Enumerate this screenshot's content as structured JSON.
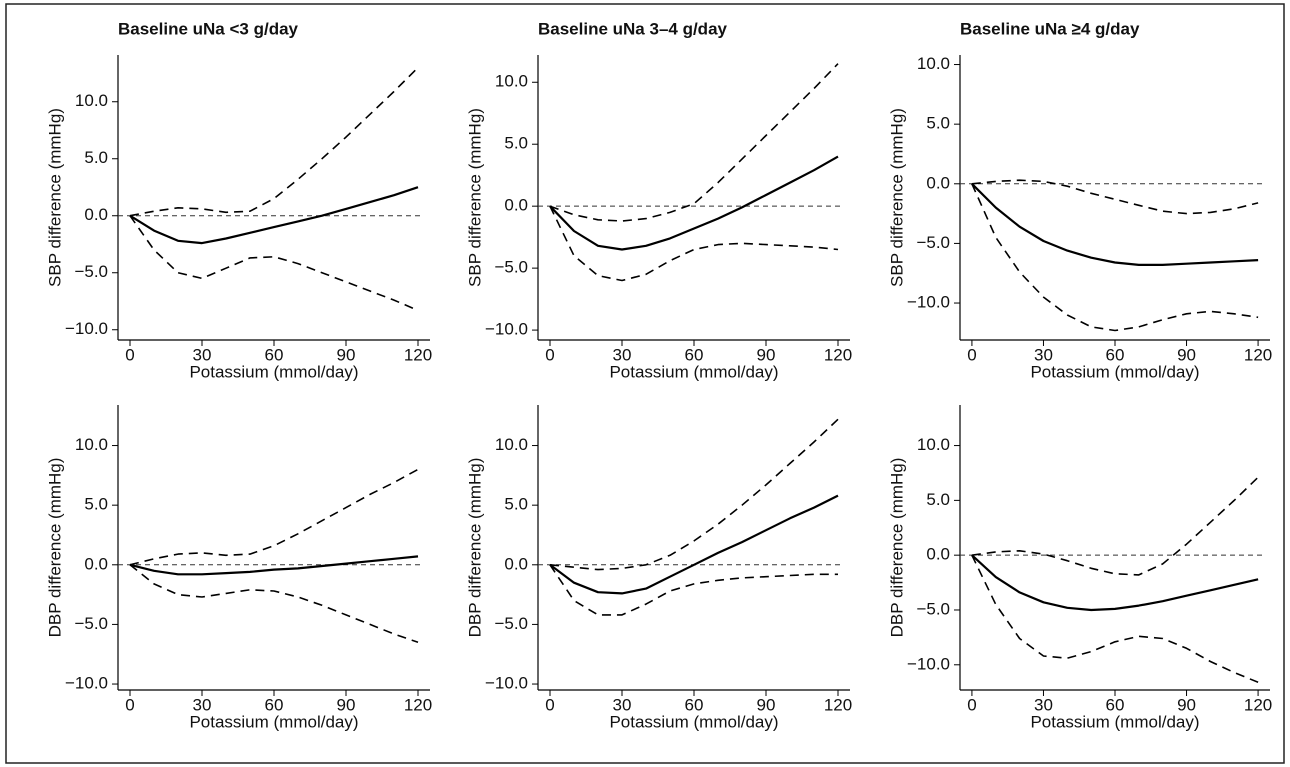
{
  "chart_data": [
    {
      "type": "line",
      "title": "Baseline uNa <3 g/day",
      "ylabel": "SBP difference (mmHg)",
      "xlabel": "Potassium (mmol/day)",
      "x": [
        0,
        10,
        20,
        30,
        40,
        50,
        60,
        70,
        80,
        90,
        100,
        110,
        120
      ],
      "series": [
        {
          "color": "#000000",
          "style": "solid",
          "values": [
            0,
            -1.3,
            -2.2,
            -2.4,
            -2.0,
            -1.5,
            -1.0,
            -0.5,
            0.0,
            0.6,
            1.2,
            1.8,
            2.5
          ]
        },
        {
          "color": "#000000",
          "style": "dashed",
          "values": [
            0,
            0.4,
            0.7,
            0.6,
            0.3,
            0.4,
            1.5,
            3.2,
            5.0,
            6.9,
            8.9,
            10.9,
            13.0
          ]
        },
        {
          "color": "#000000",
          "style": "dashed",
          "values": [
            0,
            -3.0,
            -5.0,
            -5.5,
            -4.6,
            -3.7,
            -3.6,
            -4.2,
            -5.0,
            -5.8,
            -6.6,
            -7.4,
            -8.3
          ]
        }
      ],
      "reference_line": 0,
      "xlim": [
        -5,
        125
      ],
      "ylim": [
        -10.9,
        14.1
      ],
      "xticks": [
        0,
        30,
        60,
        90,
        120
      ],
      "yticks": [
        {
          "value": 10,
          "label": "10.0"
        },
        {
          "value": 5,
          "label": "5.0"
        },
        {
          "value": 0,
          "label": "0.0"
        },
        {
          "value": -5,
          "label": "−5.0"
        },
        {
          "value": -10,
          "label": "−10.0"
        }
      ]
    },
    {
      "type": "line",
      "title": "Baseline uNa 3–4 g/day",
      "ylabel": "SBP difference (mmHg)",
      "xlabel": "Potassium (mmol/day)",
      "x": [
        0,
        10,
        20,
        30,
        40,
        50,
        60,
        70,
        80,
        90,
        100,
        110,
        120
      ],
      "series": [
        {
          "color": "#000000",
          "style": "solid",
          "values": [
            0,
            -2.0,
            -3.2,
            -3.5,
            -3.2,
            -2.6,
            -1.8,
            -1.0,
            -0.1,
            0.9,
            1.9,
            2.9,
            4.0
          ]
        },
        {
          "color": "#000000",
          "style": "dashed",
          "values": [
            0,
            -0.7,
            -1.1,
            -1.2,
            -1.0,
            -0.5,
            0.2,
            1.9,
            3.8,
            5.7,
            7.6,
            9.5,
            11.5
          ]
        },
        {
          "color": "#000000",
          "style": "dashed",
          "values": [
            0,
            -4.0,
            -5.6,
            -6.0,
            -5.5,
            -4.4,
            -3.5,
            -3.1,
            -3.0,
            -3.1,
            -3.2,
            -3.3,
            -3.5
          ]
        }
      ],
      "reference_line": 0,
      "xlim": [
        -5,
        125
      ],
      "ylim": [
        -10.8,
        12.2
      ],
      "xticks": [
        0,
        30,
        60,
        90,
        120
      ],
      "yticks": [
        {
          "value": 10,
          "label": "10.0"
        },
        {
          "value": 5,
          "label": "5.0"
        },
        {
          "value": 0,
          "label": "0.0"
        },
        {
          "value": -5,
          "label": "−5.0"
        },
        {
          "value": -10,
          "label": "−10.0"
        }
      ]
    },
    {
      "type": "line",
      "title": "Baseline uNa ≥4 g/day",
      "ylabel": "SBP difference (mmHg)",
      "xlabel": "Potassium (mmol/day)",
      "x": [
        0,
        10,
        20,
        30,
        40,
        50,
        60,
        70,
        80,
        90,
        100,
        110,
        120
      ],
      "series": [
        {
          "color": "#000000",
          "style": "solid",
          "values": [
            0,
            -2.0,
            -3.6,
            -4.8,
            -5.6,
            -6.2,
            -6.6,
            -6.8,
            -6.8,
            -6.7,
            -6.6,
            -6.5,
            -6.4
          ]
        },
        {
          "color": "#000000",
          "style": "dashed",
          "values": [
            0,
            0.2,
            0.3,
            0.2,
            -0.2,
            -0.8,
            -1.3,
            -1.8,
            -2.3,
            -2.5,
            -2.4,
            -2.1,
            -1.6
          ]
        },
        {
          "color": "#000000",
          "style": "dashed",
          "values": [
            0,
            -4.5,
            -7.4,
            -9.5,
            -11.0,
            -12.0,
            -12.3,
            -12.0,
            -11.4,
            -10.9,
            -10.7,
            -10.9,
            -11.2
          ]
        }
      ],
      "reference_line": 0,
      "xlim": [
        -5,
        125
      ],
      "ylim": [
        -13.1,
        10.8
      ],
      "xticks": [
        0,
        30,
        60,
        90,
        120
      ],
      "yticks": [
        {
          "value": 10,
          "label": "10.0"
        },
        {
          "value": 5,
          "label": "5.0"
        },
        {
          "value": 0,
          "label": "0.0"
        },
        {
          "value": -5,
          "label": "−5.0"
        },
        {
          "value": -10,
          "label": "−10.0"
        }
      ]
    },
    {
      "type": "line",
      "ylabel": "DBP difference (mmHg)",
      "xlabel": "Potassium (mmol/day)",
      "x": [
        0,
        10,
        20,
        30,
        40,
        50,
        60,
        70,
        80,
        90,
        100,
        110,
        120
      ],
      "series": [
        {
          "color": "#000000",
          "style": "solid",
          "values": [
            0,
            -0.5,
            -0.8,
            -0.8,
            -0.7,
            -0.6,
            -0.4,
            -0.3,
            -0.1,
            0.1,
            0.3,
            0.5,
            0.7
          ]
        },
        {
          "color": "#000000",
          "style": "dashed",
          "values": [
            0,
            0.5,
            0.9,
            1.0,
            0.8,
            0.9,
            1.6,
            2.6,
            3.7,
            4.8,
            5.9,
            6.9,
            8.0
          ]
        },
        {
          "color": "#000000",
          "style": "dashed",
          "values": [
            0,
            -1.6,
            -2.5,
            -2.7,
            -2.4,
            -2.1,
            -2.2,
            -2.7,
            -3.4,
            -4.2,
            -5.0,
            -5.8,
            -6.5
          ]
        }
      ],
      "reference_line": 0,
      "xlim": [
        -5,
        125
      ],
      "ylim": [
        -10.5,
        13.4
      ],
      "xticks": [
        0,
        30,
        60,
        90,
        120
      ],
      "yticks": [
        {
          "value": 10,
          "label": "10.0"
        },
        {
          "value": 5,
          "label": "5.0"
        },
        {
          "value": 0,
          "label": "0.0"
        },
        {
          "value": -5,
          "label": "−5.0"
        },
        {
          "value": -10,
          "label": "−10.0"
        }
      ]
    },
    {
      "type": "line",
      "ylabel": "DBP difference (mmHg)",
      "xlabel": "Potassium (mmol/day)",
      "x": [
        0,
        10,
        20,
        30,
        40,
        50,
        60,
        70,
        80,
        90,
        100,
        110,
        120
      ],
      "series": [
        {
          "color": "#000000",
          "style": "solid",
          "values": [
            0,
            -1.5,
            -2.3,
            -2.4,
            -2.0,
            -1.0,
            0.0,
            1.0,
            1.9,
            2.9,
            3.9,
            4.8,
            5.8
          ]
        },
        {
          "color": "#000000",
          "style": "dashed",
          "values": [
            0,
            -0.2,
            -0.4,
            -0.3,
            0.0,
            0.8,
            2.0,
            3.4,
            5.0,
            6.7,
            8.5,
            10.3,
            12.2
          ]
        },
        {
          "color": "#000000",
          "style": "dashed",
          "values": [
            0,
            -3.0,
            -4.2,
            -4.2,
            -3.3,
            -2.2,
            -1.6,
            -1.3,
            -1.1,
            -1.0,
            -0.9,
            -0.8,
            -0.8
          ]
        }
      ],
      "reference_line": 0,
      "xlim": [
        -5,
        125
      ],
      "ylim": [
        -10.5,
        13.4
      ],
      "xticks": [
        0,
        30,
        60,
        90,
        120
      ],
      "yticks": [
        {
          "value": 10,
          "label": "10.0"
        },
        {
          "value": 5,
          "label": "5.0"
        },
        {
          "value": 0,
          "label": "0.0"
        },
        {
          "value": -5,
          "label": "−5.0"
        },
        {
          "value": -10,
          "label": "−10.0"
        }
      ]
    },
    {
      "type": "line",
      "ylabel": "DBP difference (mmHg)",
      "xlabel": "Potassium (mmol/day)",
      "x": [
        0,
        10,
        20,
        30,
        40,
        50,
        60,
        70,
        80,
        90,
        100,
        110,
        120
      ],
      "series": [
        {
          "color": "#000000",
          "style": "solid",
          "values": [
            0,
            -2.0,
            -3.4,
            -4.3,
            -4.8,
            -5.0,
            -4.9,
            -4.6,
            -4.2,
            -3.7,
            -3.2,
            -2.7,
            -2.2
          ]
        },
        {
          "color": "#000000",
          "style": "dashed",
          "values": [
            0,
            0.3,
            0.4,
            0.1,
            -0.5,
            -1.2,
            -1.7,
            -1.8,
            -0.8,
            1.0,
            3.0,
            5.0,
            7.1
          ]
        },
        {
          "color": "#000000",
          "style": "dashed",
          "values": [
            0,
            -4.5,
            -7.6,
            -9.2,
            -9.4,
            -8.8,
            -7.9,
            -7.4,
            -7.6,
            -8.5,
            -9.7,
            -10.7,
            -11.6
          ]
        }
      ],
      "reference_line": 0,
      "xlim": [
        -5,
        125
      ],
      "ylim": [
        -12.3,
        13.7
      ],
      "xticks": [
        0,
        30,
        60,
        90,
        120
      ],
      "yticks": [
        {
          "value": 10,
          "label": "10.0"
        },
        {
          "value": 5,
          "label": "5.0"
        },
        {
          "value": 0,
          "label": "0.0"
        },
        {
          "value": -5,
          "label": "−5.0"
        },
        {
          "value": -10,
          "label": "−10.0"
        }
      ]
    }
  ]
}
